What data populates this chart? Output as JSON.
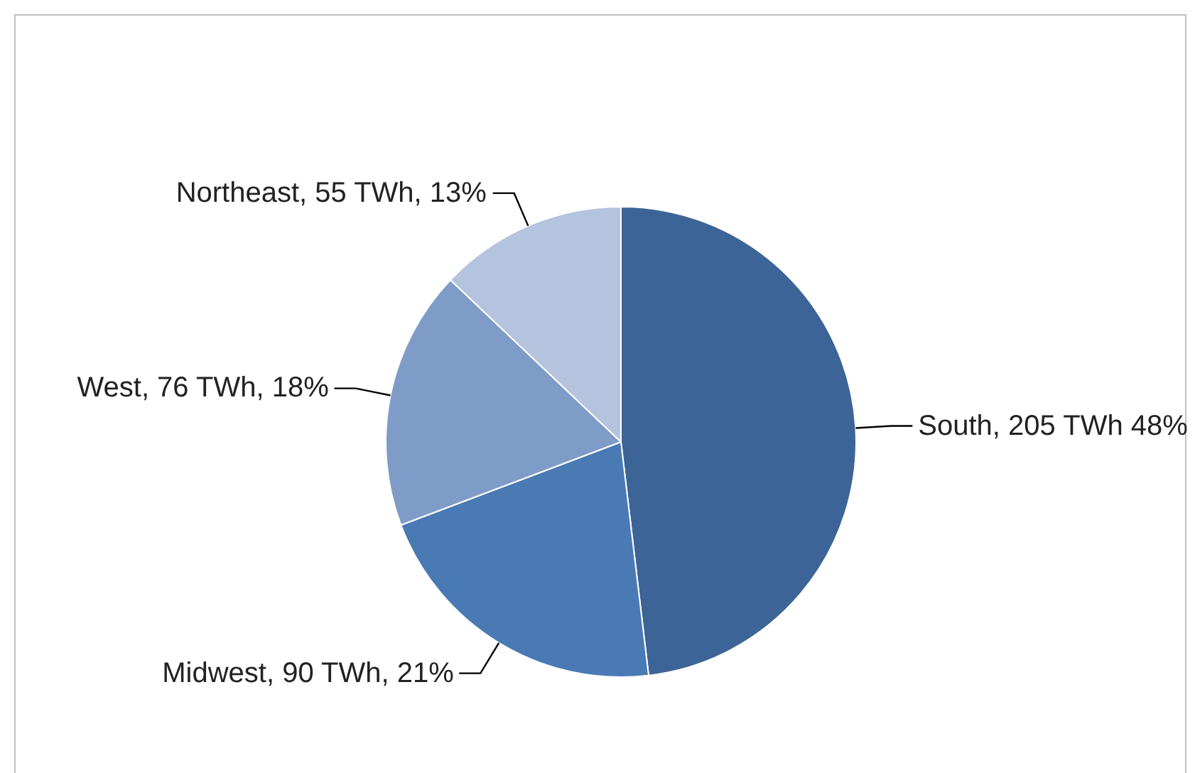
{
  "chart_data": {
    "type": "pie",
    "categories": [
      "South",
      "Midwest",
      "West",
      "Northeast"
    ],
    "values": [
      205,
      90,
      76,
      55
    ],
    "colors": [
      "#3d6496",
      "#4a7ab4",
      "#7f9cc8",
      "#b4c3de"
    ],
    "value_labels": [
      "205 TWh 48%",
      "90 TWh, 21%",
      "76 TWh, 18%",
      "55 TWh, 13%"
    ],
    "legend": false
  }
}
